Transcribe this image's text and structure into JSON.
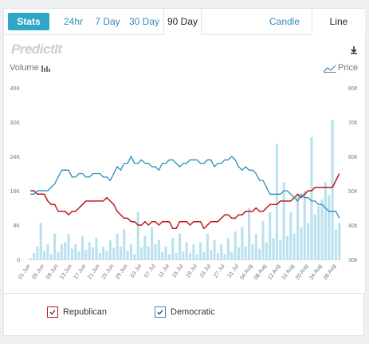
{
  "tabs": {
    "stats": "Stats",
    "ranges": [
      "24hr",
      "7 Day",
      "30 Day",
      "90 Day"
    ],
    "active_range": "90 Day",
    "views": [
      "Candle",
      "Line"
    ],
    "active_view": "Line"
  },
  "logo": "PredictIt",
  "axis_labels": {
    "volume": "Volume",
    "price": "Price"
  },
  "legend": [
    {
      "name": "Republican",
      "color": "#c0171c"
    },
    {
      "name": "Democratic",
      "color": "#2a8fb8"
    }
  ],
  "colors": {
    "accent": "#2ea7c7",
    "volume_bar": "#b9e2ee",
    "republican": "#c0171c",
    "democratic": "#2a8fb8"
  },
  "chart_data": {
    "type": "line",
    "left_axis": {
      "ticks": [
        "40K",
        "32K",
        "24K",
        "16K",
        "8K",
        "0"
      ],
      "ylim": [
        0,
        40000
      ]
    },
    "right_axis": {
      "ticks": [
        "80¢",
        "70¢",
        "60¢",
        "50¢",
        "40¢",
        "30¢"
      ],
      "ylim": [
        30,
        80
      ]
    },
    "x_tick_labels": [
      "01 Jun",
      "05 Jun",
      "09 Jun",
      "13 Jun",
      "17 Jun",
      "21 Jun",
      "25 Jun",
      "29 Jun",
      "03 Jul",
      "07 Jul",
      "11 Jul",
      "15 Jul",
      "19 Jul",
      "23 Jul",
      "27 Jul",
      "31 Jul",
      "04 Aug",
      "08 Aug",
      "12 Aug",
      "16 Aug",
      "20 Aug",
      "24 Aug",
      "28 Aug"
    ],
    "days": 90,
    "volume": [
      300,
      1500,
      3000,
      8500,
      2000,
      3500,
      1200,
      6000,
      1800,
      3500,
      4000,
      6000,
      2500,
      3500,
      1800,
      5500,
      2200,
      4000,
      2800,
      5000,
      1500,
      3000,
      2000,
      4500,
      2800,
      6000,
      3000,
      7000,
      2000,
      3500,
      1200,
      11000,
      2800,
      5500,
      3000,
      7500,
      3500,
      4500,
      1800,
      3000,
      1200,
      5000,
      1500,
      6000,
      1800,
      4000,
      1500,
      3500,
      1200,
      4000,
      1800,
      6000,
      2200,
      4500,
      1500,
      3500,
      1200,
      5000,
      1800,
      6500,
      2800,
      7500,
      3000,
      12000,
      3500,
      6000,
      2500,
      9000,
      4000,
      11000,
      5000,
      27000,
      4500,
      18000,
      5500,
      11000,
      6000,
      15000,
      7500,
      16000,
      8500,
      28500,
      10500,
      12500,
      14000,
      18000,
      15000,
      32500,
      7000,
      8500
    ],
    "series": [
      {
        "name": "Republican",
        "values": [
          50,
          50,
          49,
          49,
          49,
          47,
          46,
          46,
          44,
          44,
          44,
          43,
          44,
          44,
          45,
          46,
          47,
          47,
          47,
          47,
          47,
          47,
          48,
          47,
          46,
          44,
          43,
          42,
          42,
          41,
          41,
          40,
          40,
          41,
          40,
          41,
          41,
          40,
          41,
          41,
          41,
          39,
          39,
          41,
          41,
          41,
          40,
          41,
          41,
          41,
          39,
          40,
          41,
          41,
          41,
          42,
          43,
          43,
          42,
          42,
          43,
          43,
          44,
          44,
          44,
          45,
          44,
          44,
          45,
          46,
          46,
          46,
          47,
          47,
          47,
          47,
          48,
          49,
          48,
          49,
          50,
          50,
          51,
          51,
          51,
          51,
          51,
          51,
          53,
          55
        ]
      },
      {
        "name": "Democratic",
        "values": [
          49,
          49,
          50,
          50,
          50,
          50,
          51,
          52,
          54,
          56,
          56,
          56,
          54,
          54,
          55,
          55,
          54,
          54,
          55,
          55,
          55,
          54,
          54,
          53,
          55,
          57,
          56,
          58,
          58,
          60,
          58,
          58,
          59,
          58,
          58,
          57,
          57,
          56,
          58,
          58,
          59,
          59,
          58,
          57,
          58,
          58,
          59,
          59,
          59,
          58,
          58,
          59,
          59,
          57,
          58,
          58,
          59,
          59,
          60,
          59,
          57,
          56,
          57,
          56,
          56,
          55,
          53,
          53,
          51,
          49,
          49,
          49,
          49,
          50,
          50,
          49,
          48,
          47,
          49,
          48,
          48,
          47,
          47,
          46,
          46,
          45,
          44,
          44,
          44,
          42
        ]
      }
    ]
  }
}
